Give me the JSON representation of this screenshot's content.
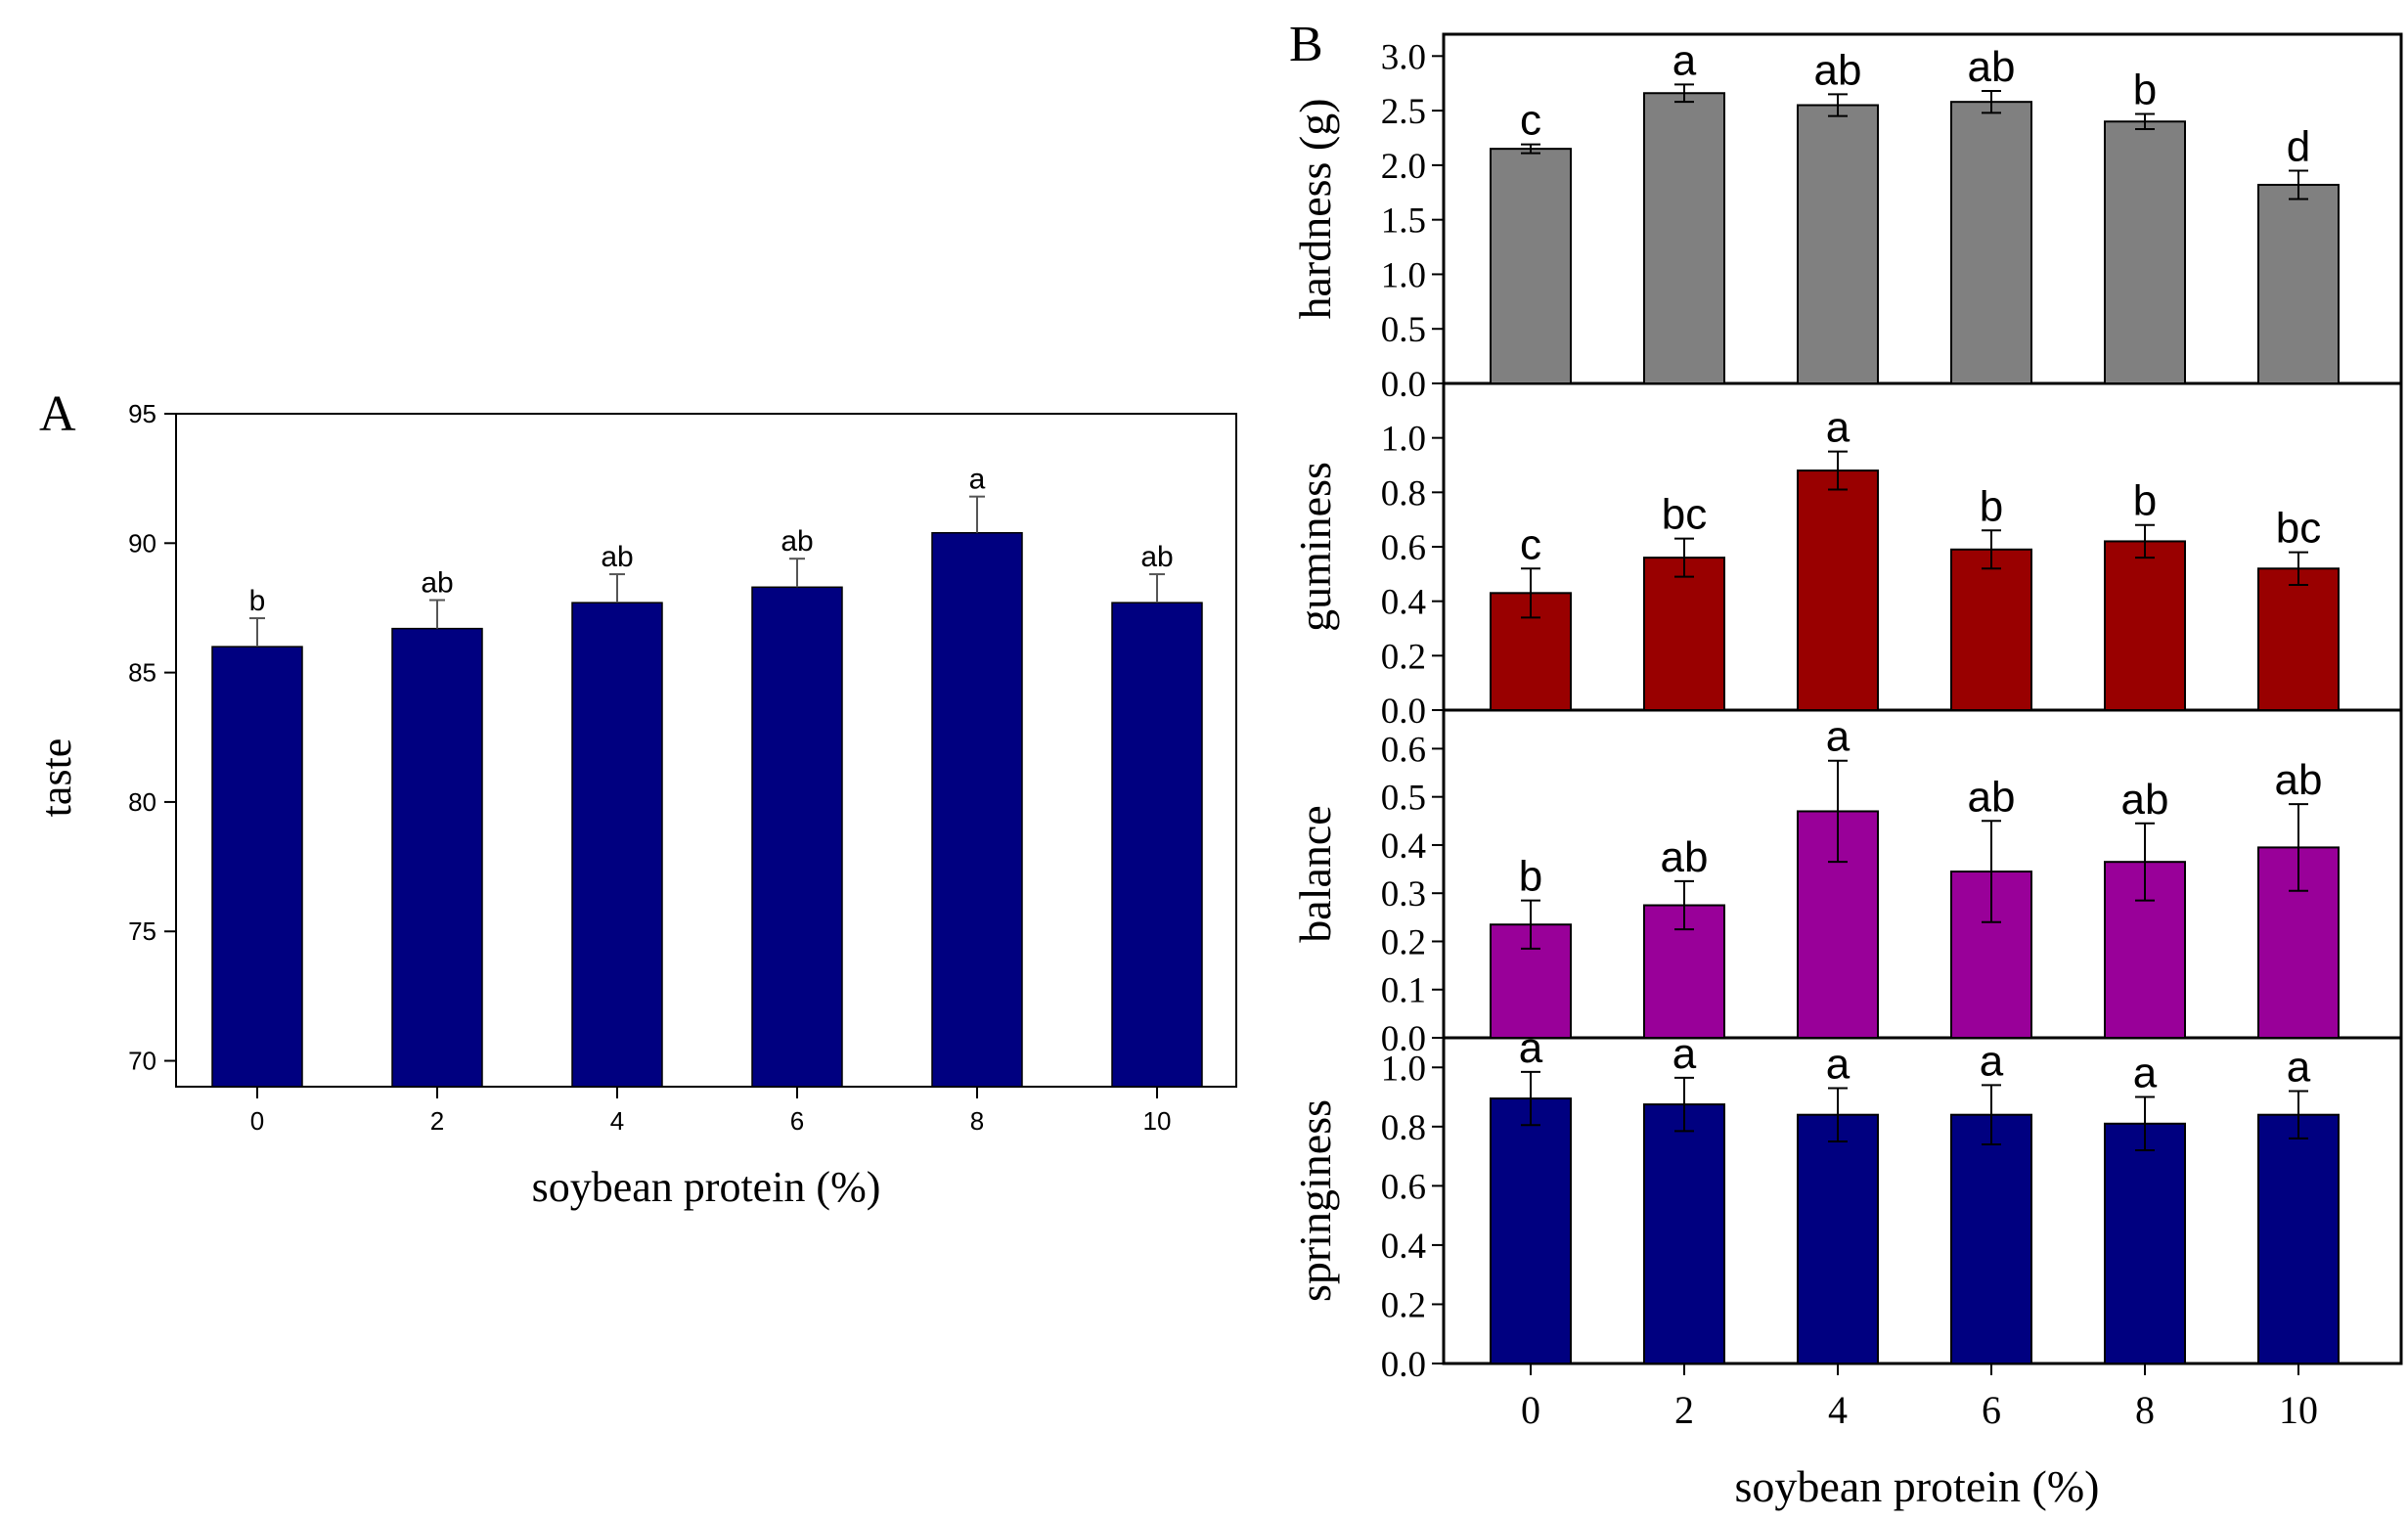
{
  "panelA": {
    "panel_label": "A",
    "bar_color": "#000080",
    "chart_data": {
      "type": "bar",
      "categories": [
        "0",
        "2",
        "4",
        "6",
        "8",
        "10"
      ],
      "values": [
        86.0,
        86.7,
        87.7,
        88.3,
        90.4,
        87.7
      ],
      "errors": [
        1.1,
        1.1,
        1.1,
        1.1,
        1.4,
        1.1
      ],
      "error_bars": "upper",
      "letters": [
        "b",
        "ab",
        "ab",
        "ab",
        "a",
        "ab"
      ],
      "ylabel": "taste",
      "xlabel": "soybean protein (%)",
      "ylim": [
        69,
        95
      ],
      "yticks": [
        "70",
        "75",
        "80",
        "85",
        "90",
        "95"
      ],
      "grid": false
    }
  },
  "panelB": {
    "panel_label": "B",
    "xlabel": "soybean protein (%)",
    "xticks": [
      "0",
      "2",
      "4",
      "6",
      "8",
      "10"
    ],
    "subplots": [
      {
        "key": "hardness",
        "bar_color": "#808080",
        "chart_data": {
          "type": "bar",
          "categories": [
            "0",
            "2",
            "4",
            "6",
            "8",
            "10"
          ],
          "values": [
            2.15,
            2.66,
            2.55,
            2.58,
            2.4,
            1.82
          ],
          "errors": [
            0.04,
            0.08,
            0.1,
            0.1,
            0.07,
            0.13
          ],
          "letters": [
            "c",
            "a",
            "ab",
            "ab",
            "b",
            "d"
          ],
          "ylabel": "hardness (g)",
          "ylim": [
            0,
            3.2
          ],
          "yticks": [
            "0.0",
            "0.5",
            "1.0",
            "1.5",
            "2.0",
            "2.5",
            "3.0"
          ]
        }
      },
      {
        "key": "guminess",
        "bar_color": "#990000",
        "chart_data": {
          "type": "bar",
          "categories": [
            "0",
            "2",
            "4",
            "6",
            "8",
            "10"
          ],
          "values": [
            0.43,
            0.56,
            0.88,
            0.59,
            0.62,
            0.52
          ],
          "errors": [
            0.09,
            0.07,
            0.07,
            0.07,
            0.06,
            0.06
          ],
          "letters": [
            "c",
            "bc",
            "a",
            "b",
            "b",
            "bc"
          ],
          "ylabel": "guminess",
          "ylim": [
            0,
            1.2
          ],
          "yticks": [
            "0.0",
            "0.2",
            "0.4",
            "0.6",
            "0.8",
            "1.0"
          ]
        }
      },
      {
        "key": "balance",
        "bar_color": "#990099",
        "chart_data": {
          "type": "bar",
          "categories": [
            "0",
            "2",
            "4",
            "6",
            "8",
            "10"
          ],
          "values": [
            0.235,
            0.275,
            0.47,
            0.345,
            0.365,
            0.395
          ],
          "errors": [
            0.05,
            0.05,
            0.105,
            0.105,
            0.08,
            0.09
          ],
          "letters": [
            "b",
            "ab",
            "a",
            "ab",
            "ab",
            "ab"
          ],
          "ylabel": "balance",
          "ylim": [
            0,
            0.68
          ],
          "yticks": [
            "0.0",
            "0.1",
            "0.2",
            "0.3",
            "0.4",
            "0.5",
            "0.6"
          ]
        }
      },
      {
        "key": "springiness",
        "bar_color": "#000080",
        "chart_data": {
          "type": "bar",
          "categories": [
            "0",
            "2",
            "4",
            "6",
            "8",
            "10"
          ],
          "values": [
            0.895,
            0.875,
            0.84,
            0.84,
            0.81,
            0.84
          ],
          "errors": [
            0.09,
            0.09,
            0.09,
            0.1,
            0.09,
            0.08
          ],
          "letters": [
            "a",
            "a",
            "a",
            "a",
            "a",
            "a"
          ],
          "ylabel": "springiness",
          "ylim": [
            0,
            1.1
          ],
          "yticks": [
            "0.0",
            "0.2",
            "0.4",
            "0.6",
            "0.8",
            "1.0"
          ]
        }
      }
    ]
  }
}
